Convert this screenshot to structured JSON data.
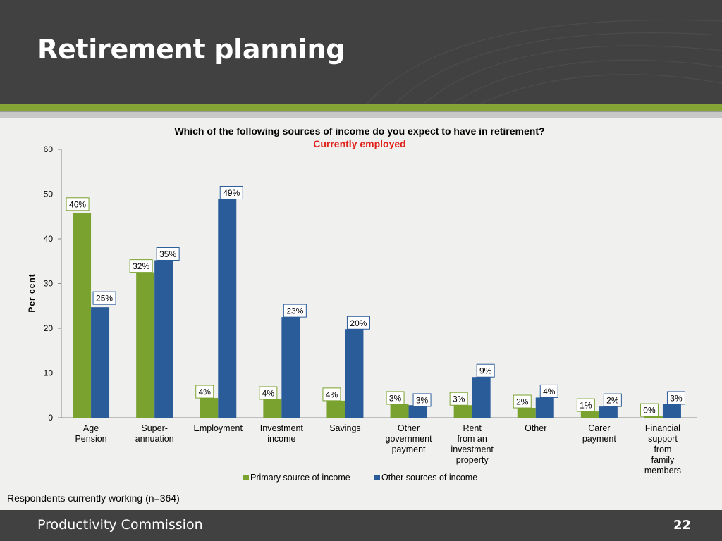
{
  "slide": {
    "title": "Retirement planning",
    "footnote": "Respondents currently working (n=364)",
    "footer_org": "Productivity Commission",
    "page_number": "22"
  },
  "colors": {
    "header_bg": "#414141",
    "accent_green": "#84a535",
    "primary_series": "#7aa22f",
    "other_series": "#2b5c9a",
    "subtitle_red": "#e0221c"
  },
  "chart_data": {
    "type": "bar",
    "title": "Which of the following sources of income do you expect to have in retirement?",
    "subtitle": "Currently employed",
    "xlabel": "",
    "ylabel": "Per cent",
    "ylim": [
      0,
      60
    ],
    "yticks": [
      0,
      10,
      20,
      30,
      40,
      50,
      60
    ],
    "grid": false,
    "legend": "bottom",
    "categories": [
      [
        "Age",
        "Pension"
      ],
      [
        "Super-",
        "annuation"
      ],
      [
        "Employment"
      ],
      [
        "Investment",
        "income"
      ],
      [
        "Savings"
      ],
      [
        "Other",
        "government",
        "payment"
      ],
      [
        "Rent",
        "from an",
        "investment",
        "property"
      ],
      [
        "Other"
      ],
      [
        "Carer",
        "payment"
      ],
      [
        "Financial",
        "support",
        "from",
        "family",
        "members"
      ]
    ],
    "series": [
      {
        "name": "Primary source of income",
        "color": "#7aa22f",
        "values": [
          45.7,
          32.5,
          4.4,
          4.1,
          3.8,
          3.0,
          2.8,
          2.2,
          1.4,
          0.3
        ],
        "labels": [
          "46%",
          "32%",
          "4%",
          "4%",
          "4%",
          "3%",
          "3%",
          "2%",
          "1%",
          "0%"
        ]
      },
      {
        "name": "Other sources of income",
        "color": "#2b5c9a",
        "values": [
          24.7,
          35.2,
          48.9,
          22.5,
          19.8,
          2.8,
          9.1,
          4.5,
          2.5,
          3.0
        ],
        "labels": [
          "25%",
          "35%",
          "49%",
          "23%",
          "20%",
          "3%",
          "9%",
          "4%",
          "2%",
          "3%"
        ]
      }
    ]
  }
}
